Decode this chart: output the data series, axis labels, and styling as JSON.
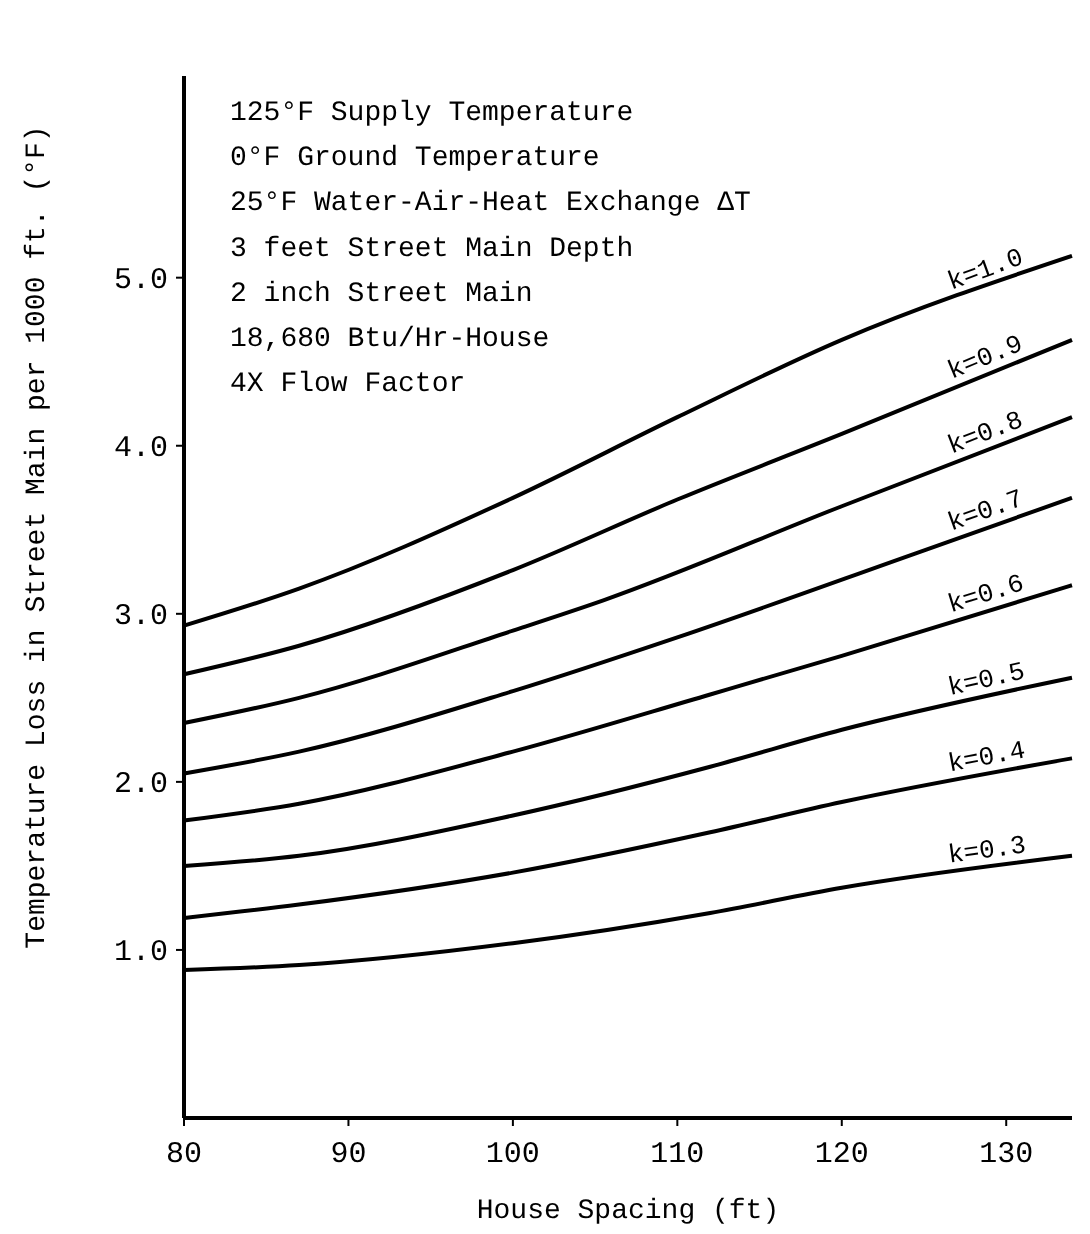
{
  "chart_data": {
    "type": "line",
    "xlabel": "House Spacing (ft)",
    "ylabel": "Temperature Loss in Street Main per 1000 ft. (°F)",
    "xlim": [
      80,
      134
    ],
    "xticks": [
      80,
      90,
      100,
      110,
      120,
      130
    ],
    "ylim": [
      0,
      6.2
    ],
    "yticks": [
      {
        "value": 1,
        "label": "1.0"
      },
      {
        "value": 2,
        "label": "2.0"
      },
      {
        "value": 3,
        "label": "3.0"
      },
      {
        "value": 4,
        "label": "4.0"
      },
      {
        "value": 5,
        "label": "5.0"
      }
    ],
    "grid": false,
    "marker": "none",
    "line_style": "solid",
    "annotations": [
      "125°F Supply Temperature",
      "0°F Ground Temperature",
      "25°F Water-Air-Heat Exchange ΔT",
      "3 feet Street Main Depth",
      "2 inch Street Main",
      "18,680 Btu/Hr-House",
      "4X Flow Factor"
    ],
    "series": [
      {
        "name": "k=1.0",
        "color": "#000000",
        "x": [
          80,
          87,
          100,
          110,
          120,
          134
        ],
        "values": [
          2.93,
          3.15,
          3.69,
          4.17,
          4.63,
          5.13
        ]
      },
      {
        "name": "k=0.9",
        "color": "#000000",
        "x": [
          80,
          87,
          100,
          110,
          120,
          134
        ],
        "values": [
          2.64,
          2.81,
          3.26,
          3.68,
          4.07,
          4.63
        ]
      },
      {
        "name": "k=0.8",
        "color": "#000000",
        "x": [
          80,
          87,
          100,
          105.5,
          120,
          134
        ],
        "values": [
          2.35,
          2.5,
          2.9,
          3.08,
          3.64,
          4.17
        ]
      },
      {
        "name": "k=0.7",
        "color": "#000000",
        "x": [
          80,
          87,
          100,
          110,
          124.5,
          134
        ],
        "values": [
          2.05,
          2.18,
          2.54,
          2.86,
          3.36,
          3.69
        ]
      },
      {
        "name": "k=0.6",
        "color": "#000000",
        "x": [
          80,
          87,
          100,
          112,
          120,
          134
        ],
        "values": [
          1.77,
          1.87,
          2.18,
          2.52,
          2.75,
          3.17
        ]
      },
      {
        "name": "k=0.5",
        "color": "#000000",
        "x": [
          80,
          87,
          100,
          112,
          120,
          134
        ],
        "values": [
          1.5,
          1.56,
          1.8,
          2.09,
          2.31,
          2.62
        ]
      },
      {
        "name": "k=0.4",
        "color": "#000000",
        "x": [
          80,
          87,
          100,
          112,
          120,
          134
        ],
        "values": [
          1.19,
          1.27,
          1.46,
          1.7,
          1.88,
          2.14
        ]
      },
      {
        "name": "k=0.3",
        "color": "#000000",
        "x": [
          80,
          87,
          100,
          112,
          120,
          134
        ],
        "values": [
          0.88,
          0.91,
          1.04,
          1.22,
          1.37,
          1.56
        ]
      }
    ]
  }
}
